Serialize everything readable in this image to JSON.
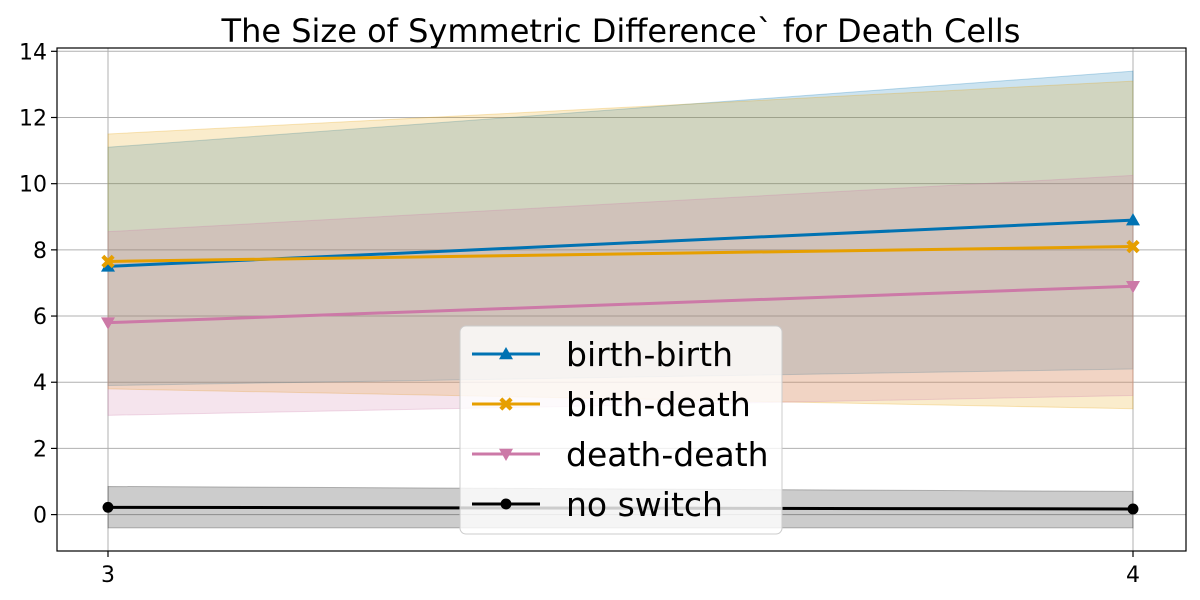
{
  "chart_data": {
    "type": "line",
    "title": "The Size of Symmetric Difference` for Death Cells",
    "xlabel": "",
    "ylabel": "",
    "x": [
      3,
      4
    ],
    "x_ticks": [
      "3",
      "4"
    ],
    "y_ticks": [
      "0",
      "2",
      "4",
      "6",
      "8",
      "10",
      "12",
      "14"
    ],
    "ylim": [
      -1.1,
      14.1
    ],
    "grid": true,
    "legend_position": "lower-center",
    "series": [
      {
        "name": "birth-birth",
        "values": [
          7.5,
          8.9
        ],
        "band_upper": [
          11.1,
          13.4
        ],
        "band_lower": [
          3.9,
          4.4
        ],
        "color": "#0072b2",
        "marker": "triangle-up"
      },
      {
        "name": "birth-death",
        "values": [
          7.65,
          8.1
        ],
        "band_upper": [
          11.5,
          13.1
        ],
        "band_lower": [
          3.8,
          3.2
        ],
        "color": "#e69f00",
        "marker": "x-filled"
      },
      {
        "name": "death-death",
        "values": [
          5.8,
          6.9
        ],
        "band_upper": [
          8.55,
          10.25
        ],
        "band_lower": [
          3.0,
          3.6
        ],
        "color": "#cc79a7",
        "marker": "triangle-down"
      },
      {
        "name": "no switch",
        "values": [
          0.22,
          0.17
        ],
        "band_upper": [
          0.85,
          0.7
        ],
        "band_lower": [
          -0.4,
          -0.4
        ],
        "color": "#000000",
        "marker": "circle"
      }
    ]
  }
}
